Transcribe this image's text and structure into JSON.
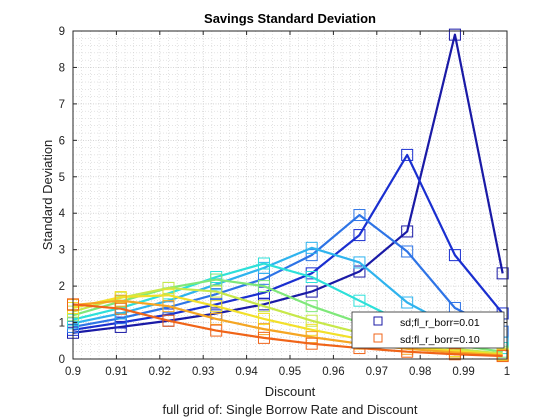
{
  "chart_data": {
    "type": "line",
    "title": "Savings Standard Deviation",
    "xlabel": "Discount",
    "ylabel": "Standard Deviation",
    "footer": "full grid of: Single Borrow Rate and Discount",
    "xlim": [
      0.9,
      1.0
    ],
    "ylim": [
      0,
      9
    ],
    "xticks": [
      "0.9",
      "0.91",
      "0.92",
      "0.93",
      "0.94",
      "0.95",
      "0.96",
      "0.97",
      "0.98",
      "0.99",
      "1"
    ],
    "yticks": [
      "0",
      "1",
      "2",
      "3",
      "4",
      "5",
      "6",
      "7",
      "8",
      "9"
    ],
    "grid": true,
    "minor_grid": true,
    "legend_position": "bottom-right",
    "x": [
      0.9,
      0.911,
      0.922,
      0.933,
      0.944,
      0.955,
      0.966,
      0.977,
      0.988,
      0.999
    ],
    "series": [
      {
        "name": "sd;fl_r_borr=0.01",
        "color": "#1a1aa6",
        "values": [
          0.72,
          0.88,
          1.05,
          1.25,
          1.5,
          1.85,
          2.4,
          3.5,
          8.9,
          2.35
        ]
      },
      {
        "color": "#1a2fd0",
        "values": [
          0.8,
          1.0,
          1.22,
          1.5,
          1.82,
          2.35,
          3.4,
          5.6,
          2.85,
          1.25
        ]
      },
      {
        "color": "#2e74e6",
        "values": [
          0.88,
          1.12,
          1.42,
          1.78,
          2.2,
          2.85,
          3.95,
          2.95,
          1.4,
          0.75
        ]
      },
      {
        "color": "#2fb3ee",
        "values": [
          0.98,
          1.25,
          1.6,
          2.05,
          2.5,
          3.05,
          2.65,
          1.55,
          0.85,
          0.45
        ]
      },
      {
        "color": "#2de0d9",
        "values": [
          1.08,
          1.4,
          1.8,
          2.25,
          2.62,
          2.25,
          1.6,
          0.95,
          0.55,
          0.3
        ]
      },
      {
        "color": "#7fe87a",
        "values": [
          1.2,
          1.58,
          1.95,
          2.18,
          2.0,
          1.45,
          1.0,
          0.62,
          0.38,
          0.2
        ]
      },
      {
        "color": "#c7e84a",
        "values": [
          1.3,
          1.68,
          1.95,
          1.85,
          1.45,
          1.05,
          0.72,
          0.45,
          0.28,
          0.15
        ]
      },
      {
        "color": "#f2e02a",
        "values": [
          1.4,
          1.7,
          1.75,
          1.45,
          1.1,
          0.8,
          0.55,
          0.35,
          0.22,
          0.12
        ]
      },
      {
        "color": "#f5a623",
        "values": [
          1.48,
          1.6,
          1.45,
          1.1,
          0.82,
          0.6,
          0.42,
          0.28,
          0.18,
          0.1
        ]
      },
      {
        "name": "sd;fl_r_borr=0.10",
        "color": "#f06418",
        "values": [
          1.5,
          1.38,
          1.05,
          0.78,
          0.58,
          0.42,
          0.3,
          0.2,
          0.13,
          0.08
        ]
      }
    ]
  }
}
